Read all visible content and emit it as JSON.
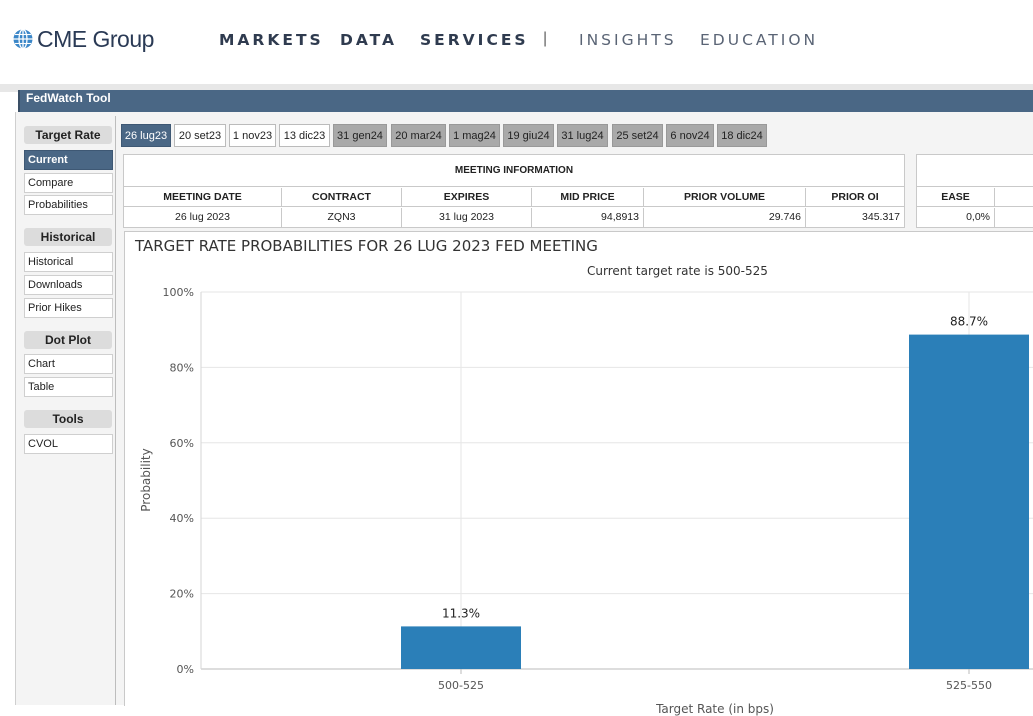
{
  "header": {
    "logo_text": "CME Group",
    "nav": [
      {
        "label": "MARKETS"
      },
      {
        "label": "DATA"
      },
      {
        "label": "SERVICES"
      },
      {
        "label": "INSIGHTS"
      },
      {
        "label": "EDUCATION"
      }
    ],
    "separator": "|"
  },
  "tool": {
    "title": "FedWatch Tool"
  },
  "sidebar": {
    "sections": [
      {
        "heading": "Target Rate",
        "items": [
          {
            "label": "Current",
            "active": true
          },
          {
            "label": "Compare"
          },
          {
            "label": "Probabilities"
          }
        ]
      },
      {
        "heading": "Historical",
        "items": [
          {
            "label": "Historical"
          },
          {
            "label": "Downloads"
          },
          {
            "label": "Prior Hikes"
          }
        ]
      },
      {
        "heading": "Dot Plot",
        "items": [
          {
            "label": "Chart"
          },
          {
            "label": "Table"
          }
        ]
      },
      {
        "heading": "Tools",
        "items": [
          {
            "label": "CVOL"
          }
        ]
      }
    ]
  },
  "date_tabs": [
    {
      "label": "26 lug23",
      "state": "active"
    },
    {
      "label": "20 set23",
      "state": "white"
    },
    {
      "label": "1 nov23",
      "state": "white"
    },
    {
      "label": "13 dic23",
      "state": "white"
    },
    {
      "label": "31 gen24",
      "state": "gray"
    },
    {
      "label": "20 mar24",
      "state": "gray"
    },
    {
      "label": "1 mag24",
      "state": "gray"
    },
    {
      "label": "19 giu24",
      "state": "gray"
    },
    {
      "label": "31 lug24",
      "state": "gray"
    },
    {
      "label": "25 set24",
      "state": "gray"
    },
    {
      "label": "6 nov24",
      "state": "gray"
    },
    {
      "label": "18 dic24",
      "state": "gray"
    }
  ],
  "meeting_info": {
    "title": "MEETING INFORMATION",
    "columns": [
      "MEETING DATE",
      "CONTRACT",
      "EXPIRES",
      "MID PRICE",
      "PRIOR VOLUME",
      "PRIOR OI"
    ],
    "row": [
      "26 lug 2023",
      "ZQN3",
      "31 lug 2023",
      "94,8913",
      "29.746",
      "345.317"
    ]
  },
  "probabilities_table": {
    "column": "EASE",
    "value": "0,0%"
  },
  "chart_data": {
    "type": "bar",
    "title": "TARGET RATE PROBABILITIES FOR 26 LUG 2023 FED MEETING",
    "subtitle": "Current target rate is 500-525",
    "xlabel": "Target Rate (in bps)",
    "ylabel": "Probability",
    "categories": [
      "500-525",
      "525-550"
    ],
    "values": [
      11.3,
      88.7
    ],
    "value_labels": [
      "11.3%",
      "88.7%"
    ],
    "ylim": [
      0,
      100
    ],
    "yticks": [
      0,
      20,
      40,
      60,
      80,
      100
    ],
    "ytick_labels": [
      "0%",
      "20%",
      "40%",
      "60%",
      "80%",
      "100%"
    ],
    "grid": true,
    "bar_color": "#2b7fb8"
  }
}
